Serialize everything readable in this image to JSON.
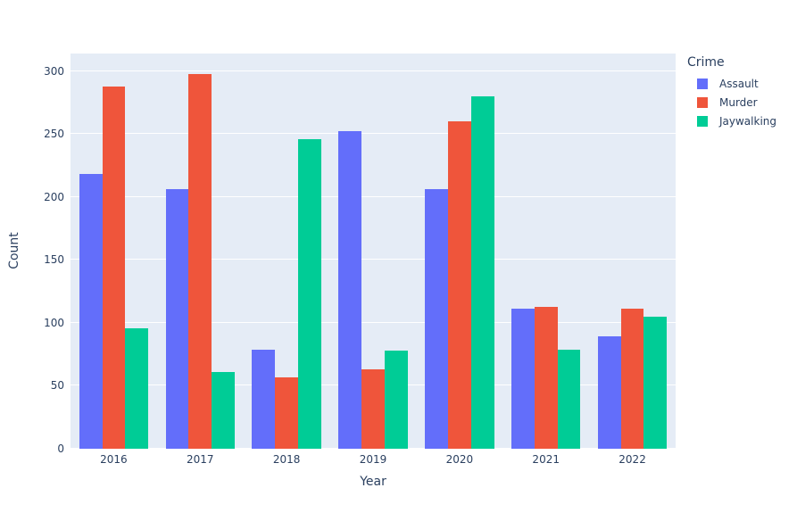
{
  "chart_data": {
    "type": "bar",
    "title": "",
    "xlabel": "Year",
    "ylabel": "Count",
    "legend_title": "Crime",
    "categories": [
      "2016",
      "2017",
      "2018",
      "2019",
      "2020",
      "2021",
      "2022"
    ],
    "series": [
      {
        "name": "Assault",
        "color": "#636EFA",
        "values": [
          218,
          206,
          79,
          252,
          206,
          111,
          89
        ]
      },
      {
        "name": "Murder",
        "color": "#EF553B",
        "values": [
          288,
          298,
          57,
          63,
          260,
          113,
          111
        ]
      },
      {
        "name": "Jaywalking",
        "color": "#00CC96",
        "values": [
          96,
          61,
          246,
          78,
          280,
          79,
          105
        ]
      }
    ],
    "ylim": [
      0,
      314
    ],
    "yticks": [
      0,
      50,
      100,
      150,
      200,
      250,
      300
    ],
    "grid": true,
    "legend_position": "right",
    "plot_bgcolor": "#E5ECF6",
    "paper_bgcolor": "#FFFFFF",
    "gridcolor": "#FFFFFF",
    "text_color": "#2A3F5F",
    "bargap": 0.2
  }
}
